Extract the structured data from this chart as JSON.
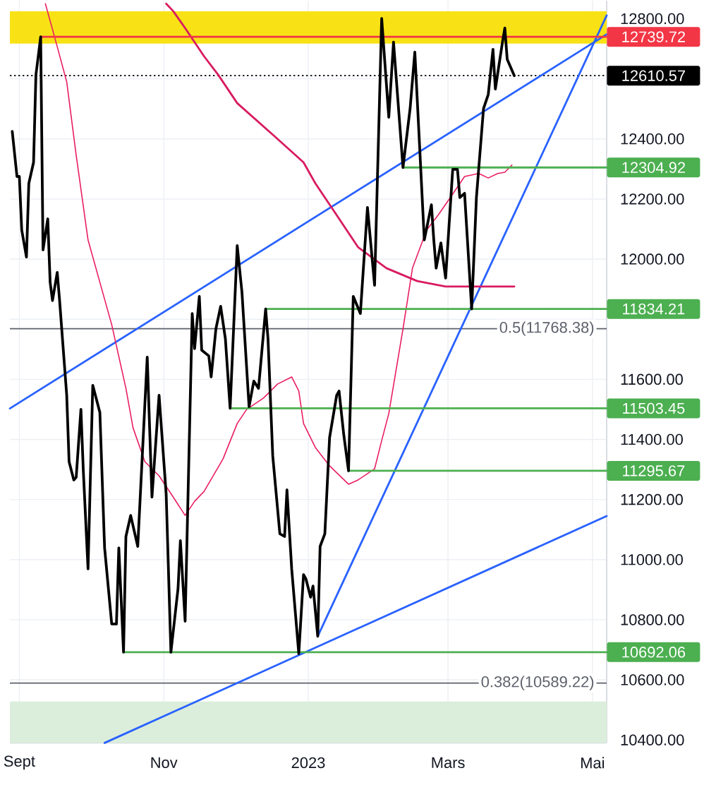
{
  "chart_data": {
    "type": "line",
    "xlim": [
      "2022-08-28",
      "2023-05-07"
    ],
    "ylim": [
      10390,
      12860
    ],
    "xticks": [
      {
        "value": "2022-09-01",
        "label": "Sept"
      },
      {
        "value": "2022-11-01",
        "label": "Nov"
      },
      {
        "value": "2023-01-01",
        "label": "2023"
      },
      {
        "value": "2023-03-01",
        "label": "Mars"
      },
      {
        "value": "2023-05-01",
        "label": "Mai"
      }
    ],
    "yticks": [
      {
        "value": 10400,
        "label": "10400.00"
      },
      {
        "value": 10600,
        "label": "10600.00"
      },
      {
        "value": 10800,
        "label": "10800.00"
      },
      {
        "value": 11000,
        "label": "11000.00"
      },
      {
        "value": 11200,
        "label": "11200.00"
      },
      {
        "value": 11400,
        "label": "11400.00"
      },
      {
        "value": 11600,
        "label": "11600.00"
      },
      {
        "value": 11800,
        "label": null
      },
      {
        "value": 12000,
        "label": "12000.00"
      },
      {
        "value": 12200,
        "label": "12200.00"
      },
      {
        "value": 12400,
        "label": "12400.00"
      },
      {
        "value": 12600,
        "label": null
      },
      {
        "value": 12800,
        "label": "12800.00"
      }
    ],
    "grid": true,
    "bands": [
      {
        "axis": "y",
        "from": 12717,
        "to": 12825,
        "color": "#f8e216"
      },
      {
        "axis": "y",
        "from": 10390,
        "to": 10528,
        "color": "#dbeedb"
      }
    ],
    "ref_lines": [
      {
        "axis": "y",
        "value": 12610.57,
        "label": "12610.57",
        "color": "#000000",
        "line_style": "dotted"
      },
      {
        "axis": "y",
        "value": 11768.38,
        "label": "0.5(11768.38)",
        "color": "#5d606b"
      },
      {
        "axis": "y",
        "value": 10589.22,
        "label": "0.382(10589.22)",
        "color": "#5d606b"
      }
    ],
    "series": [
      {
        "color": "#2962ff",
        "x": [
          "2022-10-07",
          "2023-05-07"
        ],
        "values": [
          10390,
          11145
        ]
      },
      {
        "color": "#2962ff",
        "x": [
          "2022-08-28",
          "2023-05-07"
        ],
        "values": [
          11503,
          12748
        ]
      },
      {
        "color": "#2962ff",
        "x": [
          "2023-01-05",
          "2023-05-07"
        ],
        "values": [
          10745,
          12811
        ]
      },
      {
        "color": "#e91e63",
        "x": [
          "2022-09-12",
          "2022-09-17",
          "2022-09-21",
          "2022-09-25",
          "2022-09-30",
          "2022-10-05",
          "2022-10-10",
          "2022-10-16",
          "2022-10-19",
          "2022-10-24",
          "2022-10-30",
          "2022-11-05",
          "2022-11-10",
          "2022-11-14",
          "2022-11-18",
          "2022-11-26",
          "2022-12-02",
          "2022-12-06",
          "2022-12-13",
          "2022-12-19",
          "2022-12-25",
          "2022-12-28",
          "2022-12-30",
          "2023-01-04",
          "2023-01-10",
          "2023-01-18",
          "2023-01-22",
          "2023-01-29",
          "2023-02-01",
          "2023-02-04",
          "2023-02-10",
          "2023-02-14",
          "2023-02-20",
          "2023-02-25",
          "2023-03-02",
          "2023-03-08",
          "2023-03-14",
          "2023-03-18",
          "2023-03-22",
          "2023-03-25",
          "2023-03-28"
        ],
        "values": [
          12850,
          12707,
          12590,
          12346,
          12064,
          11923,
          11782,
          11570,
          11439,
          11326,
          11279,
          11208,
          11147,
          11194,
          11227,
          11335,
          11453,
          11500,
          11537,
          11584,
          11608,
          11561,
          11453,
          11373,
          11312,
          11251,
          11265,
          11302,
          11396,
          11486,
          11768,
          11970,
          12097,
          12148,
          12205,
          12275,
          12285,
          12270,
          12285,
          12289,
          12313
        ]
      },
      {
        "color": "#d81b60",
        "x": [
          "2022-11-02",
          "2022-11-05",
          "2022-11-10",
          "2022-11-18",
          "2022-11-24",
          "2022-12-02",
          "2022-12-18",
          "2022-12-30",
          "2023-01-04",
          "2023-01-12",
          "2023-01-22",
          "2023-02-03",
          "2023-02-16",
          "2023-02-28",
          "2023-03-14",
          "2023-03-29"
        ],
        "values": [
          12850,
          12825,
          12769,
          12675,
          12613,
          12519,
          12407,
          12322,
          12252,
          12158,
          12040,
          11970,
          11927,
          11909,
          11909,
          11909
        ]
      },
      {
        "color": "#f23645",
        "x": [
          "2022-09-10",
          "2023-05-07"
        ],
        "values": [
          12739.72,
          12739.72
        ],
        "value_labels": [
          null,
          "12739.72"
        ]
      },
      {
        "color": "#4caf50",
        "x": [
          "2023-02-10",
          "2023-05-07"
        ],
        "values": [
          12304.92,
          12304.92
        ],
        "value_labels": [
          null,
          "12304.92"
        ]
      },
      {
        "color": "#4caf50",
        "x": [
          "2022-12-14",
          "2023-05-07"
        ],
        "values": [
          11834.21,
          11834.21
        ],
        "value_labels": [
          null,
          "11834.21"
        ]
      },
      {
        "color": "#4caf50",
        "x": [
          "2022-11-29",
          "2023-05-07"
        ],
        "values": [
          11503.45,
          11503.45
        ],
        "value_labels": [
          null,
          "11503.45"
        ]
      },
      {
        "color": "#4caf50",
        "x": [
          "2023-01-18",
          "2023-05-07"
        ],
        "values": [
          11295.67,
          11295.67
        ],
        "value_labels": [
          null,
          "11295.67"
        ]
      },
      {
        "color": "#4caf50",
        "x": [
          "2022-10-15",
          "2023-05-07"
        ],
        "values": [
          10692.06,
          10692.06
        ],
        "value_labels": [
          null,
          "10692.06"
        ]
      },
      {
        "color": "#000000",
        "x": [
          "2022-08-29",
          "2022-08-31",
          "2022-09-01",
          "2022-09-02",
          "2022-09-04",
          "2022-09-05",
          "2022-09-07",
          "2022-09-08",
          "2022-09-10",
          "2022-09-11",
          "2022-09-13",
          "2022-09-14",
          "2022-09-15",
          "2022-09-17",
          "2022-09-18",
          "2022-09-21",
          "2022-09-22",
          "2022-09-24",
          "2022-09-25",
          "2022-09-27",
          "2022-09-28",
          "2022-09-30",
          "2022-10-02",
          "2022-10-05",
          "2022-10-07",
          "2022-10-10",
          "2022-10-12",
          "2022-10-13",
          "2022-10-15",
          "2022-10-16",
          "2022-10-18",
          "2022-10-21",
          "2022-10-25",
          "2022-10-27",
          "2022-10-30",
          "2022-11-02",
          "2022-11-04",
          "2022-11-07",
          "2022-11-08",
          "2022-11-10",
          "2022-11-13",
          "2022-11-14",
          "2022-11-16",
          "2022-11-17",
          "2022-11-20",
          "2022-11-21",
          "2022-11-23",
          "2022-11-25",
          "2022-11-27",
          "2022-11-29",
          "2022-12-02",
          "2022-12-04",
          "2022-12-07",
          "2022-12-09",
          "2022-12-11",
          "2022-12-14",
          "2022-12-15",
          "2022-12-17",
          "2022-12-20",
          "2022-12-22",
          "2022-12-23",
          "2022-12-25",
          "2022-12-28",
          "2022-12-30",
          "2022-12-31",
          "2023-01-02",
          "2023-01-03",
          "2023-01-05",
          "2023-01-06",
          "2023-01-08",
          "2023-01-10",
          "2023-01-13",
          "2023-01-14",
          "2023-01-16",
          "2023-01-18",
          "2023-01-20",
          "2023-01-23",
          "2023-01-26",
          "2023-01-29",
          "2023-02-01",
          "2023-02-04",
          "2023-02-06",
          "2023-02-10",
          "2023-02-13",
          "2023-02-15",
          "2023-02-17",
          "2023-02-19",
          "2023-02-22",
          "2023-02-23",
          "2023-02-24",
          "2023-02-26",
          "2023-02-28",
          "2023-03-03",
          "2023-03-05",
          "2023-03-06",
          "2023-03-08",
          "2023-03-11",
          "2023-03-13",
          "2023-03-16",
          "2023-03-18",
          "2023-03-20",
          "2023-03-21",
          "2023-03-24",
          "2023-03-25",
          "2023-03-26",
          "2023-03-29"
        ],
        "values": [
          12425,
          12275,
          12275,
          12097,
          12007,
          12252,
          12322,
          12613,
          12739.72,
          12031,
          12134,
          11923,
          11862,
          11956,
          11862,
          11547,
          11326,
          11265,
          11274,
          11500,
          11298,
          10969,
          11580,
          11490,
          11039,
          10786,
          10786,
          11039,
          10692.06,
          11077,
          11147,
          11044,
          11674,
          11208,
          11547,
          11218,
          10692,
          10903,
          11063,
          10795,
          11819,
          11702,
          11876,
          11697,
          11678,
          11608,
          11768,
          11843,
          11735,
          11503.45,
          12045,
          11890,
          11509,
          11594,
          11570,
          11834.21,
          11735,
          11345,
          11086,
          11077,
          11232,
          10969,
          10687,
          10950,
          10936,
          10875,
          10912,
          10745,
          11044,
          11086,
          11406,
          11547,
          11561,
          11415,
          11295.67,
          11876,
          11819,
          12172,
          11913,
          12801,
          12472,
          12722,
          12304.92,
          12501,
          12689,
          12378,
          12064,
          12181,
          12064,
          11970,
          12054,
          11937,
          12299,
          12299,
          12205,
          12219,
          11834,
          12205,
          12501,
          12548,
          12698,
          12566,
          12722,
          12769,
          12665,
          12610.57
        ]
      }
    ]
  }
}
